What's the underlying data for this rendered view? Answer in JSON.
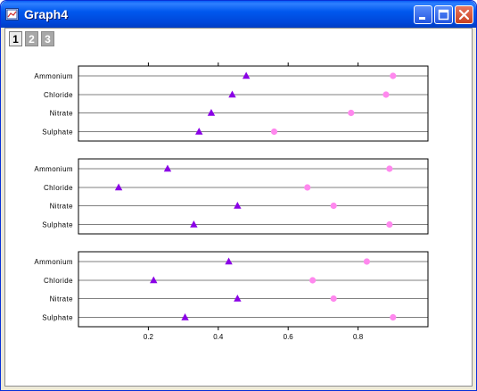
{
  "window": {
    "title": "Graph4"
  },
  "layer_tabs": [
    "1",
    "2",
    "3"
  ],
  "chart_data": {
    "type": "scatter",
    "x_axis": {
      "ticks": [
        "0.2",
        "0.4",
        "0.6",
        "0.8"
      ],
      "tick_values": [
        0.2,
        0.4,
        0.6,
        0.8
      ],
      "range": [
        0.0,
        1.0
      ]
    },
    "categories": [
      "Ammonium",
      "Chloride",
      "Nitrate",
      "Sulphate"
    ],
    "colors": {
      "triangle": "#8a00e6",
      "circle": "#ff88ee"
    },
    "panels": [
      {
        "series": [
          {
            "marker": "triangle",
            "values": [
              0.48,
              0.44,
              0.38,
              0.345
            ]
          },
          {
            "marker": "circle",
            "values": [
              0.9,
              0.88,
              0.78,
              0.56
            ]
          }
        ]
      },
      {
        "series": [
          {
            "marker": "triangle",
            "values": [
              0.255,
              0.115,
              0.455,
              0.33
            ]
          },
          {
            "marker": "circle",
            "values": [
              0.89,
              0.655,
              0.73,
              0.89
            ]
          }
        ]
      },
      {
        "series": [
          {
            "marker": "triangle",
            "values": [
              0.43,
              0.215,
              0.455,
              0.305
            ]
          },
          {
            "marker": "circle",
            "values": [
              0.825,
              0.67,
              0.73,
              0.9
            ]
          }
        ]
      }
    ]
  }
}
